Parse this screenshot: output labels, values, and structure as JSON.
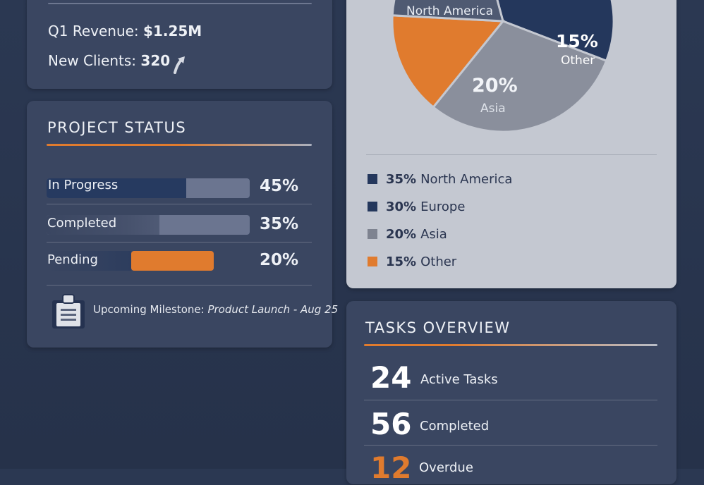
{
  "summary": {
    "revenue_label": "Q1 Revenue:",
    "revenue_value": "$1.25M",
    "clients_label": "New Clients:",
    "clients_value": "320"
  },
  "project_status": {
    "title": "PROJECT STATUS",
    "rows": [
      {
        "label": "In Progress",
        "percent": "45%",
        "fill": 0.45
      },
      {
        "label": "Completed",
        "percent": "35%",
        "fill": 0.35
      },
      {
        "label": "Pending",
        "percent": "20%",
        "fill": 0.2
      }
    ],
    "milestone_prefix": "Upcoming Milestone:",
    "milestone_text": "Product Launch - Aug 25"
  },
  "chart_data": {
    "type": "pie",
    "slices": [
      {
        "label": "North America",
        "value": 35,
        "color": "#24375c"
      },
      {
        "label": "Europe",
        "value": 30,
        "color": "#8a8f9c"
      },
      {
        "label": "Asia",
        "value": 20,
        "color": "#4f5a72"
      },
      {
        "label": "Other",
        "value": 15,
        "color": "#e07b2e"
      }
    ],
    "slice_labels": {
      "north_america": "North America",
      "asia_pct": "20%",
      "asia": "Asia",
      "other_pct": "15%",
      "other": "Other"
    },
    "legend": [
      {
        "pct": "35%",
        "label": "North America",
        "color": "#24375c"
      },
      {
        "pct": "30%",
        "label": "Europe",
        "color": "#24375c"
      },
      {
        "pct": "20%",
        "label": "Asia",
        "color": "#7e8390"
      },
      {
        "pct": "15%",
        "label": "Other",
        "color": "#e07b2e"
      }
    ]
  },
  "tasks": {
    "title": "TASKS OVERVIEW",
    "items": [
      {
        "count": "24",
        "label": "Active Tasks"
      },
      {
        "count": "56",
        "label": "Completed"
      },
      {
        "count": "12",
        "label": "Overdue"
      }
    ]
  },
  "colors": {
    "accent": "#e07b2e",
    "navy": "#24375c",
    "card": "#3a4661",
    "light_card": "#c4c8d1"
  }
}
